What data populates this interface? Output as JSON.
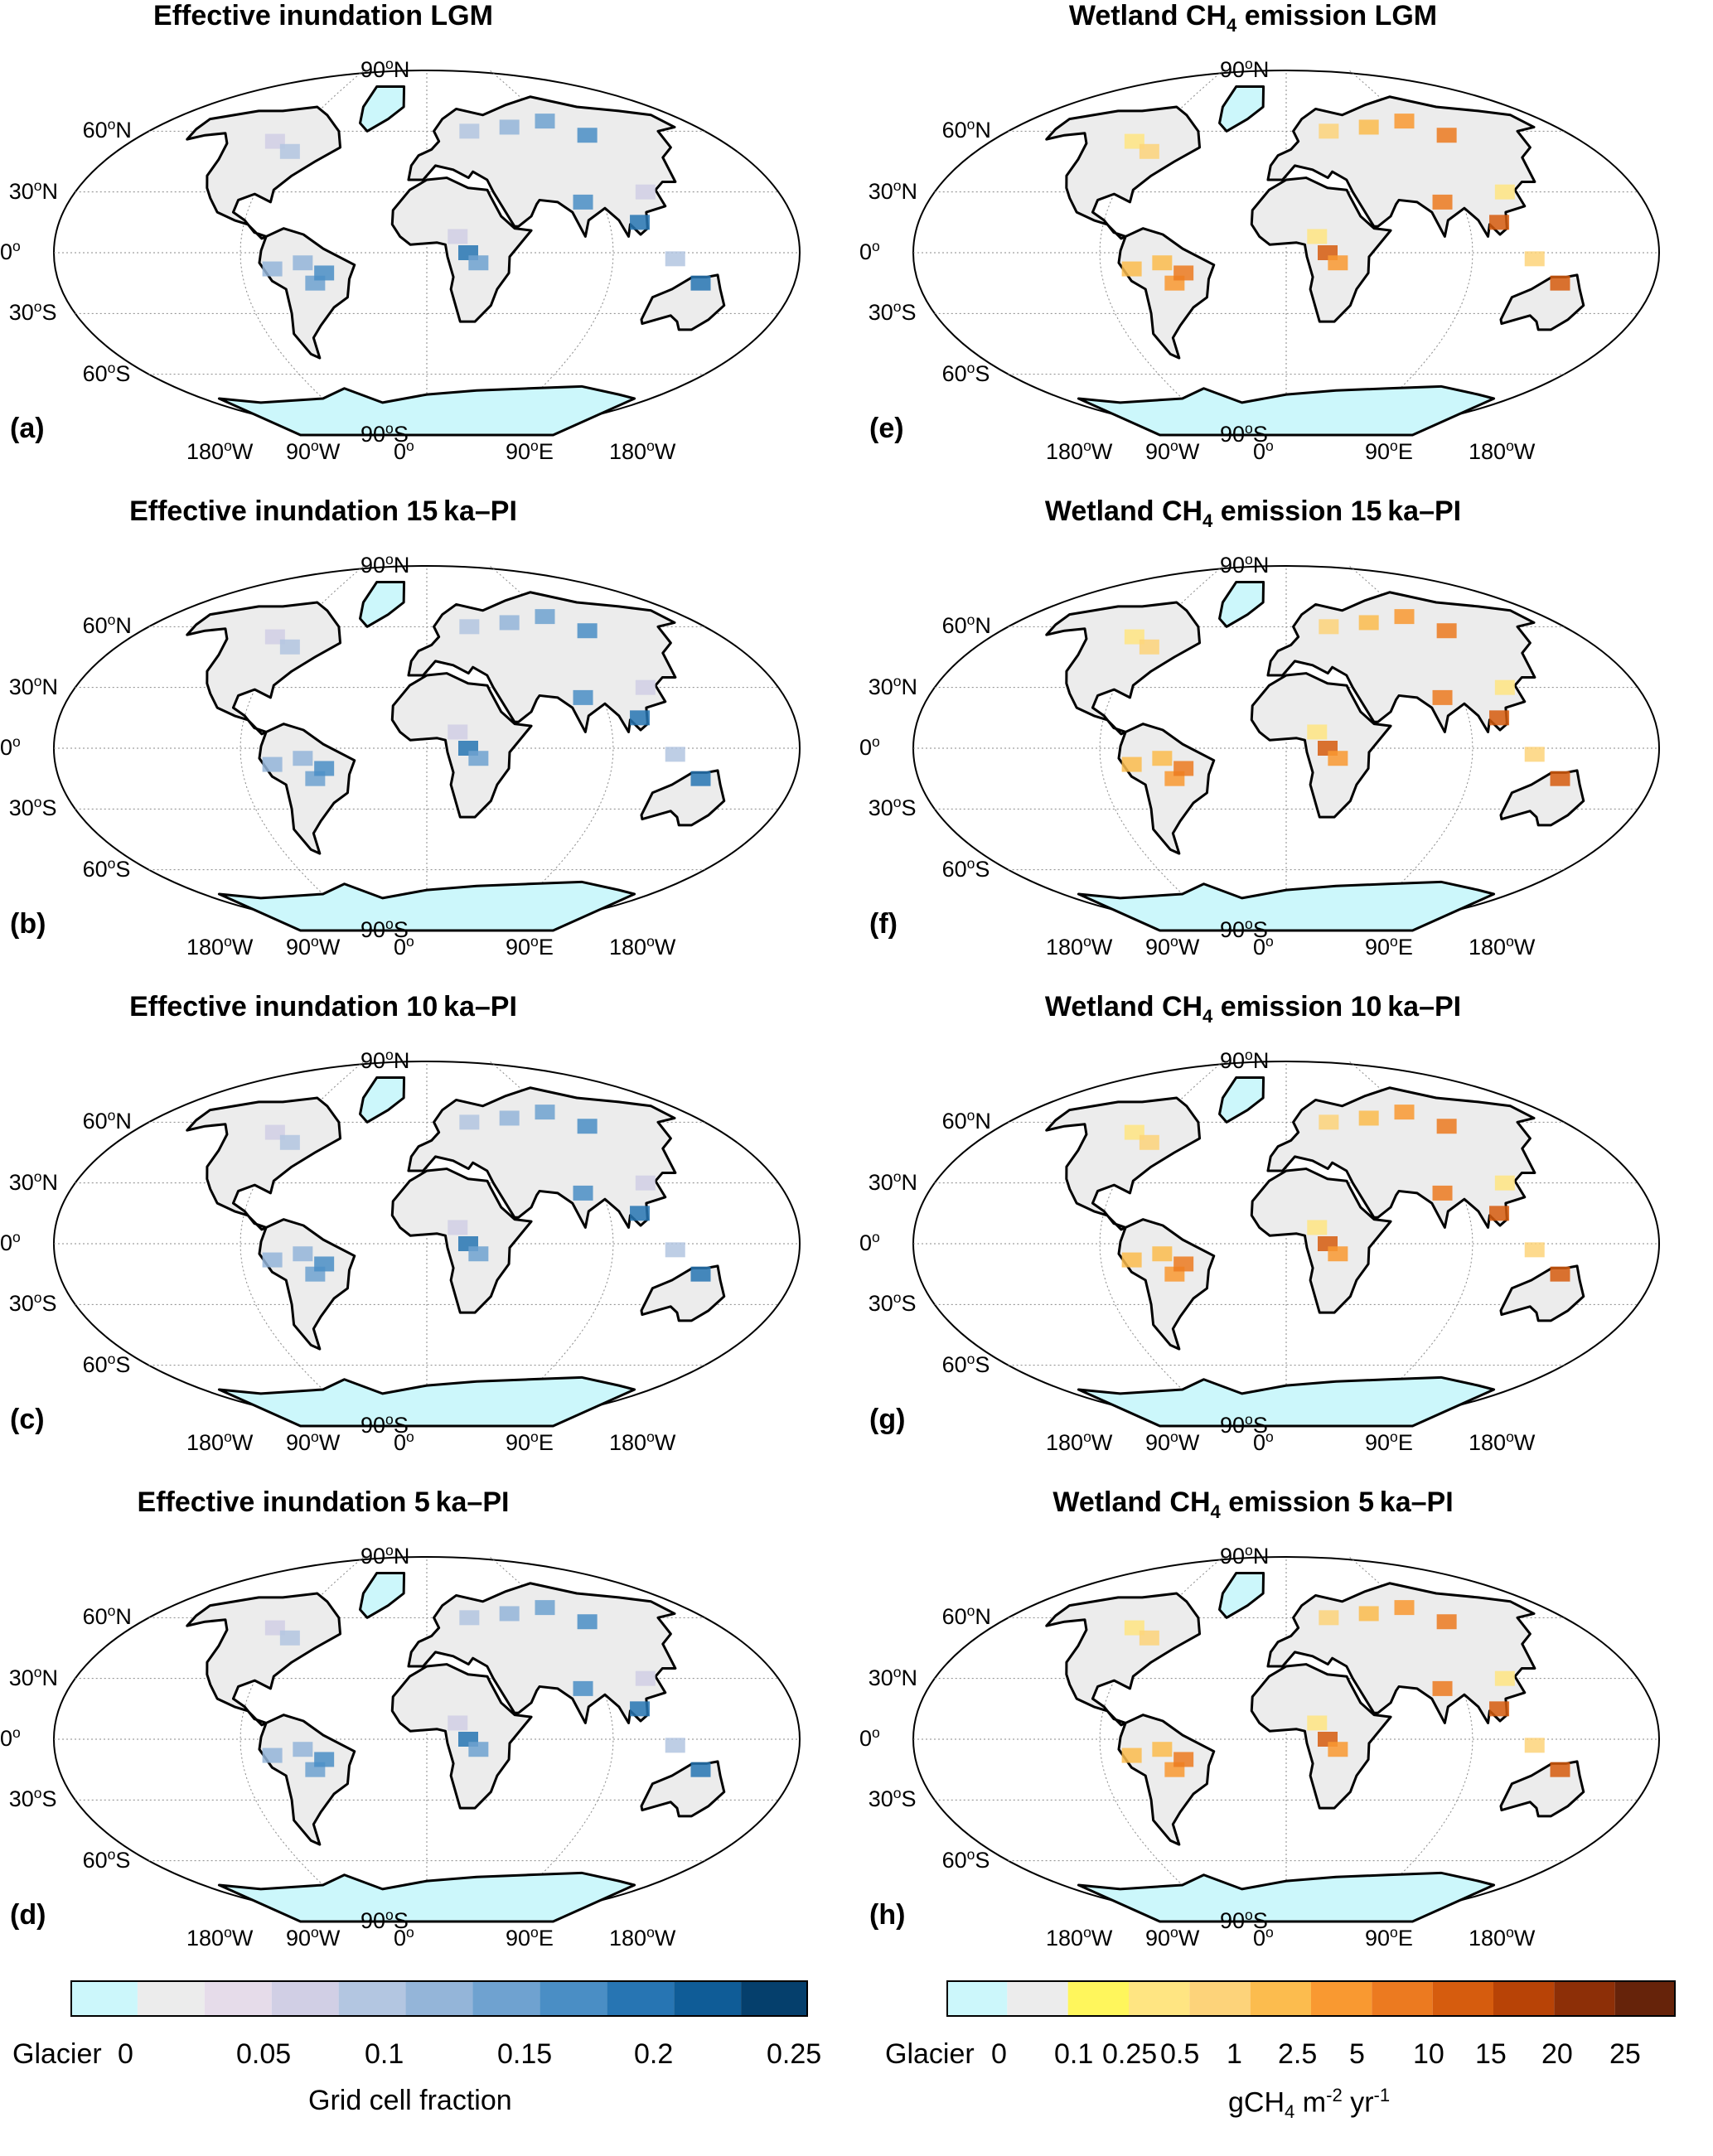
{
  "chart_data": [
    {
      "type": "heatmap",
      "panel": "a",
      "title": "Effective inundation LGM",
      "colorbar": "inundation"
    },
    {
      "type": "heatmap",
      "panel": "b",
      "title": "Effective inundation 15 ka–PI",
      "colorbar": "inundation"
    },
    {
      "type": "heatmap",
      "panel": "c",
      "title": "Effective inundation 10 ka–PI",
      "colorbar": "inundation"
    },
    {
      "type": "heatmap",
      "panel": "d",
      "title": "Effective inundation 5 ka–PI",
      "colorbar": "inundation"
    },
    {
      "type": "heatmap",
      "panel": "e",
      "title_parts": [
        "Wetland CH",
        "4",
        " emission LGM"
      ],
      "colorbar": "methane"
    },
    {
      "type": "heatmap",
      "panel": "f",
      "title_parts": [
        "Wetland CH",
        "4",
        " emission 15 ka–PI"
      ],
      "colorbar": "methane"
    },
    {
      "type": "heatmap",
      "panel": "g",
      "title_parts": [
        "Wetland CH",
        "4",
        " emission 10 ka–PI"
      ],
      "colorbar": "methane"
    },
    {
      "type": "heatmap",
      "panel": "h",
      "title_parts": [
        "Wetland CH",
        "4",
        " emission 5 ka–PI"
      ],
      "colorbar": "methane"
    }
  ],
  "panel_labels": [
    "(a)",
    "(b)",
    "(c)",
    "(d)",
    "(e)",
    "(f)",
    "(g)",
    "(h)"
  ],
  "map_axes": {
    "lat_labels": [
      "90",
      "60",
      "30",
      "0",
      "30",
      "60",
      "90"
    ],
    "lat_hemis": [
      "N",
      "N",
      "N",
      "",
      "S",
      "S",
      "S"
    ],
    "lon_labels": [
      "180",
      "90",
      "0",
      "90",
      "180"
    ],
    "lon_hemis": [
      "W",
      "W",
      "",
      "E",
      "W"
    ],
    "degree_mark": "o"
  },
  "colorbars": {
    "inundation": {
      "ticks": [
        "Glacier",
        "0",
        "0.05",
        "0.1",
        "0.15",
        "0.2",
        "0.25"
      ],
      "label": "Grid cell fraction",
      "colors": [
        "#ccf7fb",
        "#ececec",
        "#e6dcea",
        "#d1cfe5",
        "#b3c6e1",
        "#94b5d9",
        "#6fa2d0",
        "#4a8ec5",
        "#2775b3",
        "#0f5c97",
        "#053f6c"
      ]
    },
    "methane": {
      "ticks": [
        "Glacier",
        "0",
        "0.1",
        "0.25",
        "0.5",
        "1",
        "2.5",
        "5",
        "10",
        "15",
        "20",
        "25"
      ],
      "label_parts": [
        "gCH",
        "4",
        " m",
        "-2",
        "yr",
        "-1"
      ],
      "colors": [
        "#ccf7fb",
        "#ececec",
        "#fff65c",
        "#ffe582",
        "#fdd37a",
        "#fcbc4e",
        "#f99931",
        "#ec7a20",
        "#d65c0e",
        "#b84306",
        "#8d2f07",
        "#66230a"
      ]
    }
  }
}
